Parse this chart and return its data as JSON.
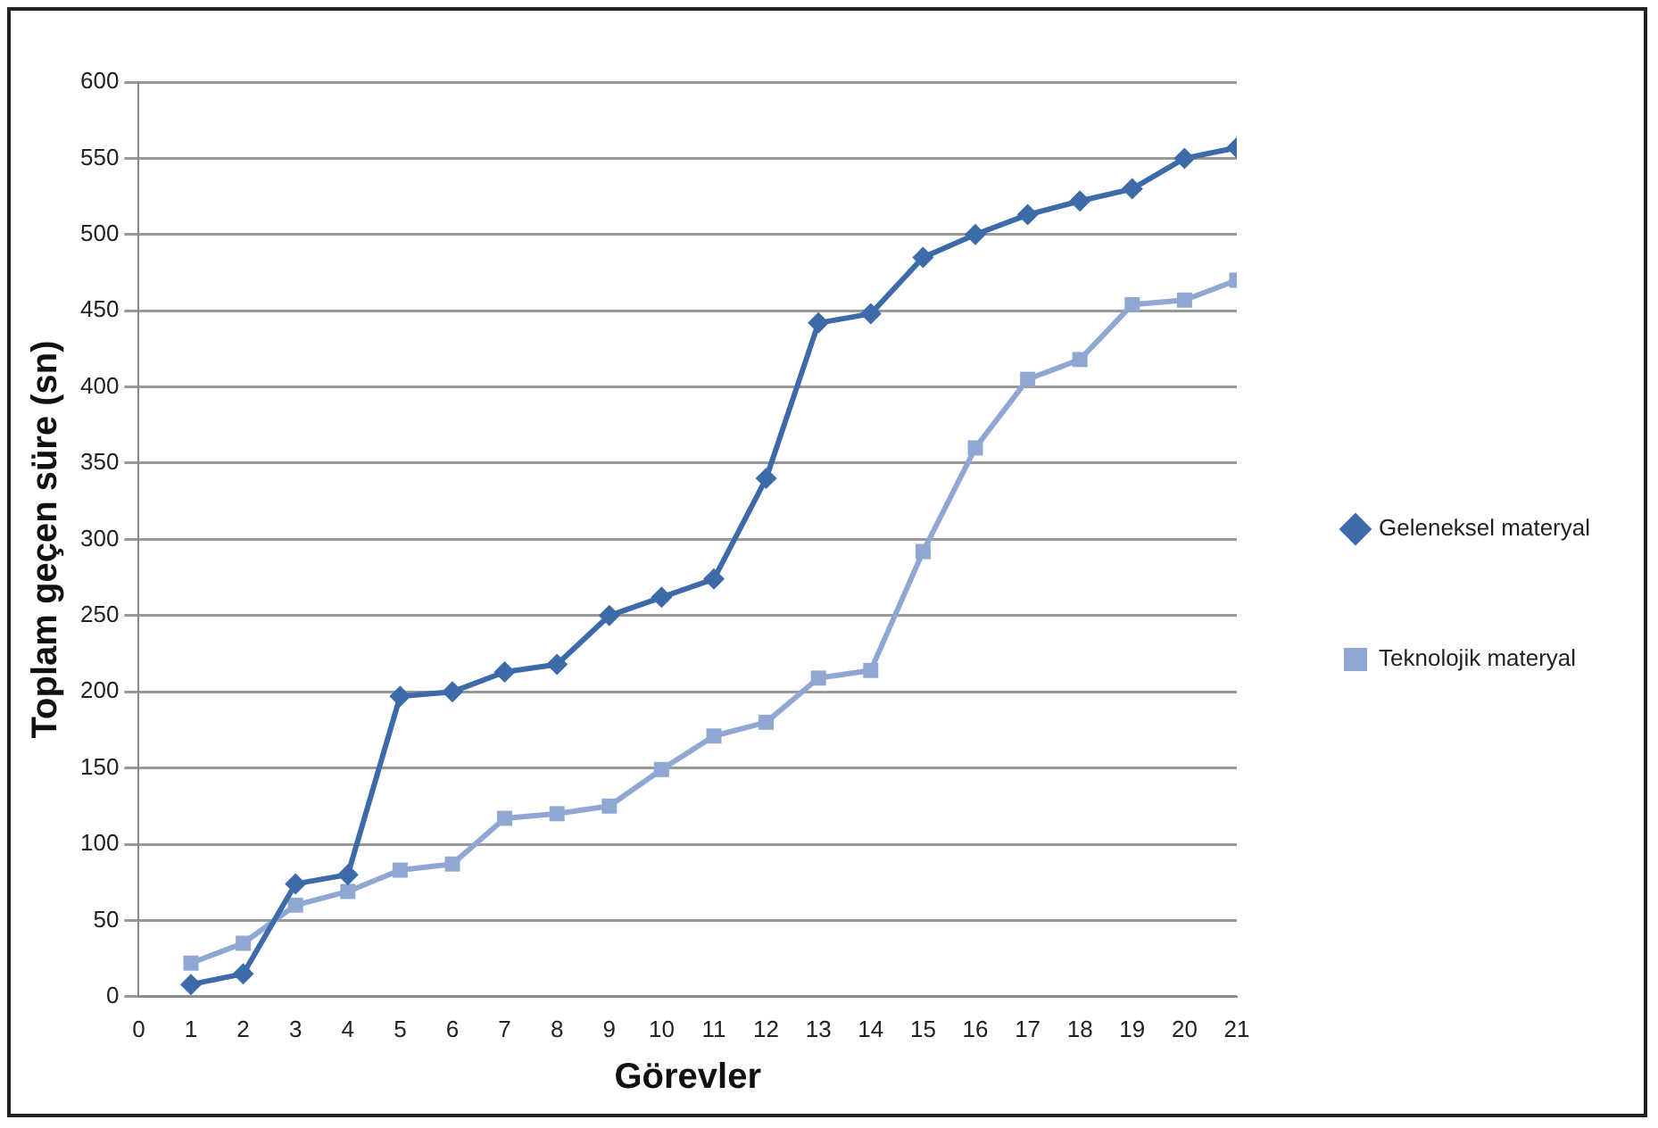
{
  "chart_data": {
    "type": "line",
    "xlabel": "Görevler",
    "ylabel": "Toplam geçen süre (sn)",
    "x": [
      1,
      2,
      3,
      4,
      5,
      6,
      7,
      8,
      9,
      10,
      11,
      12,
      13,
      14,
      15,
      16,
      17,
      18,
      19,
      20,
      21
    ],
    "series": [
      {
        "name": "Geleneksel materyal",
        "color": "#3d6aa8",
        "marker": "diamond",
        "values": [
          8,
          15,
          74,
          80,
          197,
          200,
          213,
          218,
          250,
          262,
          274,
          340,
          442,
          448,
          485,
          500,
          513,
          522,
          530,
          550,
          557
        ]
      },
      {
        "name": "Teknolojik materyal",
        "color": "#8fa7d2",
        "marker": "square",
        "values": [
          22,
          35,
          60,
          69,
          83,
          87,
          117,
          120,
          125,
          149,
          171,
          180,
          209,
          214,
          292,
          360,
          405,
          418,
          454,
          457,
          470
        ]
      }
    ],
    "xlim": [
      0,
      21
    ],
    "xticks": [
      0,
      1,
      2,
      3,
      4,
      5,
      6,
      7,
      8,
      9,
      10,
      11,
      12,
      13,
      14,
      15,
      16,
      17,
      18,
      19,
      20,
      21
    ],
    "ylim": [
      0,
      600
    ],
    "yticks": [
      0,
      50,
      100,
      150,
      200,
      250,
      300,
      350,
      400,
      450,
      500,
      550,
      600
    ],
    "grid": "y",
    "legend": "right",
    "line_style": "solid"
  }
}
